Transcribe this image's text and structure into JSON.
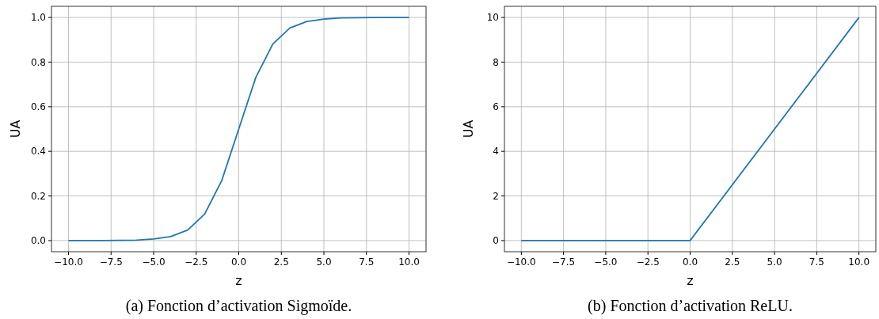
{
  "chart_data": [
    {
      "type": "line",
      "xlabel": "z",
      "ylabel": "UA",
      "annotations": [
        "(a) Fonction d’activation Sigmoïde."
      ],
      "x": [
        -10,
        -9,
        -8,
        -7,
        -6,
        -5,
        -4,
        -3,
        -2,
        -1,
        0,
        1,
        2,
        3,
        4,
        5,
        6,
        7,
        8,
        9,
        10
      ],
      "series": [
        {
          "color": "#1f77b4",
          "values": [
            0,
            0,
            0,
            0.001,
            0.002,
            0.007,
            0.018,
            0.047,
            0.119,
            0.269,
            0.5,
            0.731,
            0.881,
            0.953,
            0.982,
            0.993,
            0.998,
            0.999,
            1,
            1,
            1
          ]
        }
      ],
      "xlim": [
        -11,
        11
      ],
      "ylim": [
        -0.05,
        1.05
      ],
      "xticks": [
        {
          "value": -10,
          "label": "−10.0"
        },
        {
          "value": -7.5,
          "label": "−7.5"
        },
        {
          "value": -5,
          "label": "−5.0"
        },
        {
          "value": -2.5,
          "label": "−2.5"
        },
        {
          "value": 0,
          "label": "0.0"
        },
        {
          "value": 2.5,
          "label": "2.5"
        },
        {
          "value": 5,
          "label": "5.0"
        },
        {
          "value": 7.5,
          "label": "7.5"
        },
        {
          "value": 10,
          "label": "10.0"
        }
      ],
      "yticks": [
        {
          "value": 0,
          "label": "0.0"
        },
        {
          "value": 0.2,
          "label": "0.2"
        },
        {
          "value": 0.4,
          "label": "0.4"
        },
        {
          "value": 0.6,
          "label": "0.6"
        },
        {
          "value": 0.8,
          "label": "0.8"
        },
        {
          "value": 1,
          "label": "1.0"
        }
      ],
      "grid": true
    },
    {
      "type": "line",
      "xlabel": "z",
      "ylabel": "UA",
      "annotations": [
        "(b) Fonction d’activation ReLU."
      ],
      "x": [
        -10,
        0,
        10
      ],
      "series": [
        {
          "color": "#1f77b4",
          "values": [
            0,
            0,
            10
          ]
        }
      ],
      "xlim": [
        -11,
        11
      ],
      "ylim": [
        -0.5,
        10.5
      ],
      "xticks": [
        {
          "value": -10,
          "label": "−10.0"
        },
        {
          "value": -7.5,
          "label": "−7.5"
        },
        {
          "value": -5,
          "label": "−5.0"
        },
        {
          "value": -2.5,
          "label": "−2.5"
        },
        {
          "value": 0,
          "label": "0.0"
        },
        {
          "value": 2.5,
          "label": "2.5"
        },
        {
          "value": 5,
          "label": "5.0"
        },
        {
          "value": 7.5,
          "label": "7.5"
        },
        {
          "value": 10,
          "label": "10.0"
        }
      ],
      "yticks": [
        0,
        2,
        4,
        6,
        8,
        10
      ],
      "grid": true
    }
  ]
}
